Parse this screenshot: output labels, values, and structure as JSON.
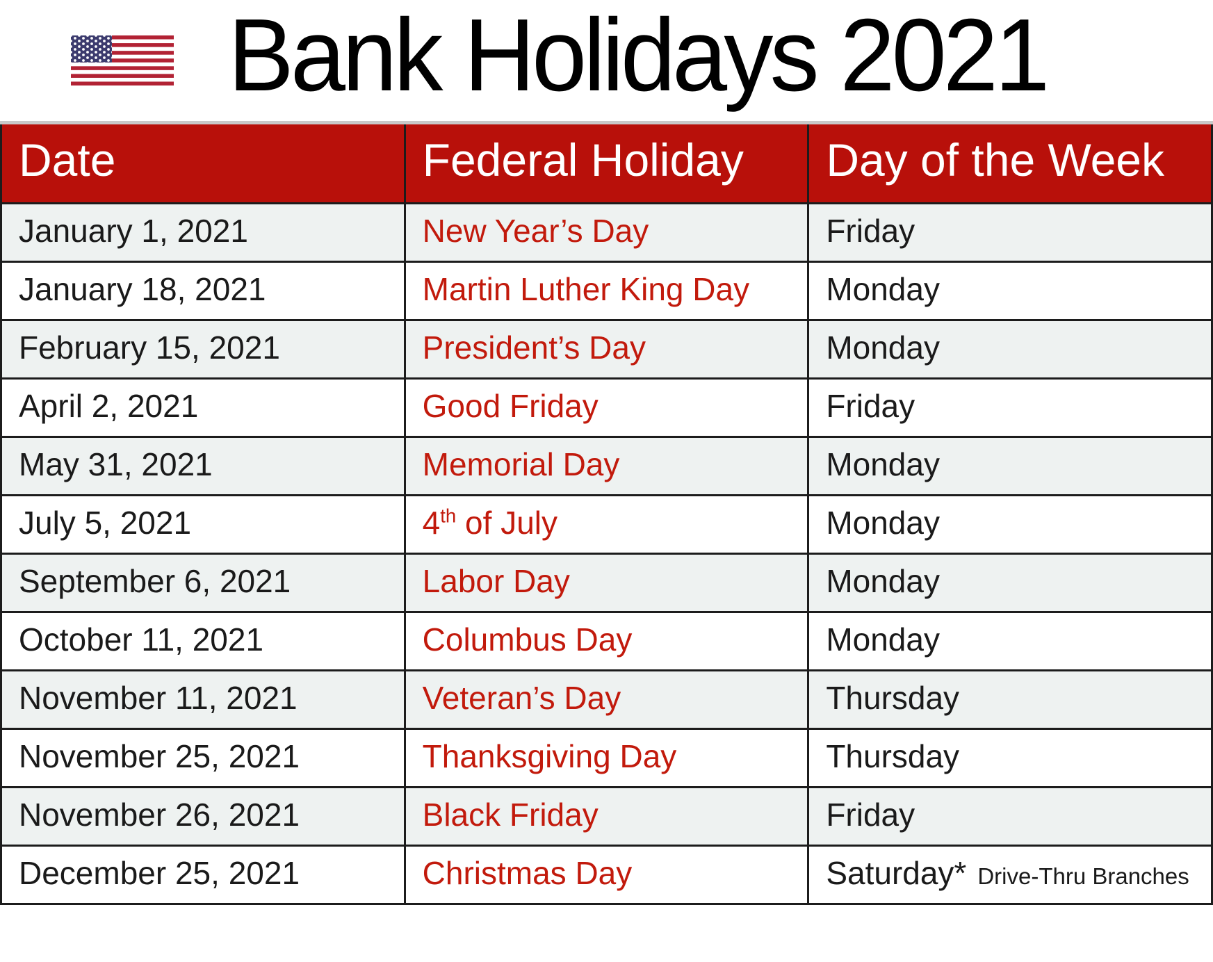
{
  "header": {
    "title": "Bank Holidays 2021",
    "flag_icon": "us-flag-icon",
    "flag_colors": {
      "red": "#b22234",
      "white": "#ffffff",
      "blue": "#3c3b6e"
    }
  },
  "table": {
    "columns": [
      "Date",
      "Federal Holiday",
      "Day of the Week"
    ],
    "colors": {
      "header_bg": "#b8100a",
      "header_fg": "#ffffff",
      "holiday_fg": "#c21a0c",
      "row_bg": "#ffffff",
      "row_alt_bg": "#eef2f1",
      "border": "#1c1c1c"
    },
    "rows": [
      {
        "date": "January 1, 2021",
        "holiday": "New Year’s Day",
        "day": "Friday"
      },
      {
        "date": "January 18, 2021",
        "holiday": "Martin Luther King Day",
        "day": "Monday"
      },
      {
        "date": "February 15, 2021",
        "holiday": "President’s Day",
        "day": "Monday"
      },
      {
        "date": "April 2, 2021",
        "holiday": "Good Friday",
        "day": "Friday"
      },
      {
        "date": "May 31, 2021",
        "holiday": "Memorial Day",
        "day": "Monday"
      },
      {
        "date": "July 5, 2021",
        "holiday": "4th of July",
        "holiday_parts": {
          "base": "4",
          "sup": "th",
          "rest": " of July"
        },
        "day": "Monday"
      },
      {
        "date": "September 6, 2021",
        "holiday": "Labor Day",
        "day": "Monday"
      },
      {
        "date": "October 11, 2021",
        "holiday": "Columbus Day",
        "day": "Monday"
      },
      {
        "date": "November 11, 2021",
        "holiday": "Veteran’s Day",
        "day": "Thursday"
      },
      {
        "date": "November 25, 2021",
        "holiday": "Thanksgiving Day",
        "day": "Thursday"
      },
      {
        "date": "November 26, 2021",
        "holiday": "Black Friday",
        "day": "Friday"
      },
      {
        "date": "December 25, 2021",
        "holiday": "Christmas Day",
        "day": "Saturday*",
        "day_note": "Drive-Thru Branches"
      }
    ]
  }
}
